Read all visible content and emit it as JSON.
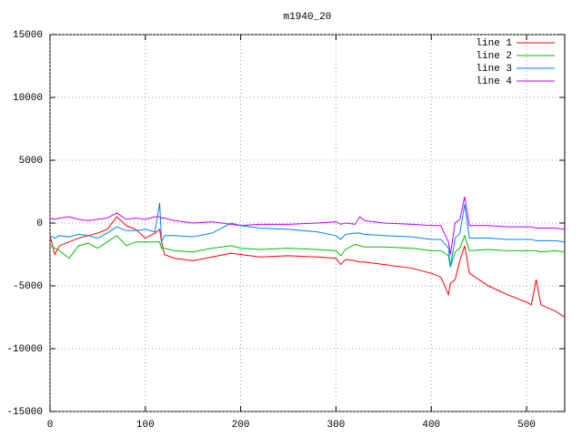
{
  "chart_data": {
    "type": "line",
    "title": "m1940_20",
    "x": [
      0,
      5,
      10,
      20,
      30,
      40,
      50,
      60,
      70,
      80,
      90,
      100,
      110,
      115,
      117,
      120,
      130,
      150,
      170,
      190,
      200,
      220,
      250,
      280,
      300,
      305,
      310,
      320,
      325,
      330,
      350,
      380,
      400,
      410,
      418,
      420,
      425,
      430,
      435,
      440,
      460,
      480,
      500,
      505,
      510,
      515,
      530,
      540
    ],
    "series": [
      {
        "name": "line 1",
        "color": "#ff0000",
        "values": [
          -1000,
          -2500,
          -1800,
          -1500,
          -1200,
          -1000,
          -800,
          -500,
          500,
          -200,
          -500,
          -1200,
          -800,
          -500,
          -1500,
          -2500,
          -2800,
          -3000,
          -2700,
          -2400,
          -2500,
          -2700,
          -2600,
          -2700,
          -2800,
          -3300,
          -2900,
          -3000,
          -3100,
          -3100,
          -3300,
          -3600,
          -4000,
          -4300,
          -5700,
          -4800,
          -4500,
          -3000,
          -1800,
          -4000,
          -5000,
          -5700,
          -6300,
          -6500,
          -4500,
          -6500,
          -7000,
          -7500
        ]
      },
      {
        "name": "line 2",
        "color": "#00c000",
        "values": [
          -1800,
          -2000,
          -2200,
          -2800,
          -1800,
          -1600,
          -2000,
          -1500,
          -1000,
          -1800,
          -1500,
          -1500,
          -1500,
          -1500,
          -2000,
          -2000,
          -2200,
          -2300,
          -2000,
          -1800,
          -2000,
          -2100,
          -2000,
          -2100,
          -2200,
          -2600,
          -2100,
          -1700,
          -1800,
          -1900,
          -1900,
          -2000,
          -2200,
          -2200,
          -2600,
          -3500,
          -2300,
          -2000,
          -1000,
          -2200,
          -2100,
          -2200,
          -2200,
          -2200,
          -2200,
          -2300,
          -2200,
          -2300
        ]
      },
      {
        "name": "line 3",
        "color": "#0080ff",
        "values": [
          -1000,
          -1200,
          -1000,
          -1100,
          -900,
          -1000,
          -1200,
          -800,
          -300,
          -600,
          -600,
          -500,
          -700,
          1600,
          -1500,
          -1000,
          -1000,
          -1100,
          -800,
          0,
          -200,
          -400,
          -500,
          -700,
          -1000,
          -1300,
          -900,
          -800,
          -800,
          -900,
          -1000,
          -1100,
          -1300,
          -1300,
          -2000,
          -3500,
          -1200,
          -800,
          1500,
          -1200,
          -1200,
          -1300,
          -1300,
          -1300,
          -1400,
          -1400,
          -1400,
          -1500
        ]
      },
      {
        "name": "line 4",
        "color": "#c000ff",
        "values": [
          400,
          300,
          400,
          500,
          300,
          200,
          300,
          400,
          800,
          300,
          400,
          300,
          500,
          500,
          400,
          400,
          200,
          0,
          100,
          -100,
          -200,
          -100,
          -100,
          0,
          100,
          -100,
          0,
          -100,
          500,
          200,
          0,
          -100,
          -200,
          -200,
          -1500,
          -2500,
          0,
          300,
          2100,
          -200,
          -200,
          -300,
          -300,
          -300,
          -400,
          -400,
          -400,
          -500
        ]
      }
    ],
    "xlim": [
      0,
      540
    ],
    "ylim": [
      -15000,
      15000
    ],
    "xticks": [
      0,
      100,
      200,
      300,
      400,
      500
    ],
    "yticks": [
      -15000,
      -10000,
      -5000,
      0,
      5000,
      10000,
      15000
    ],
    "grid": true,
    "legend": "top-right"
  }
}
